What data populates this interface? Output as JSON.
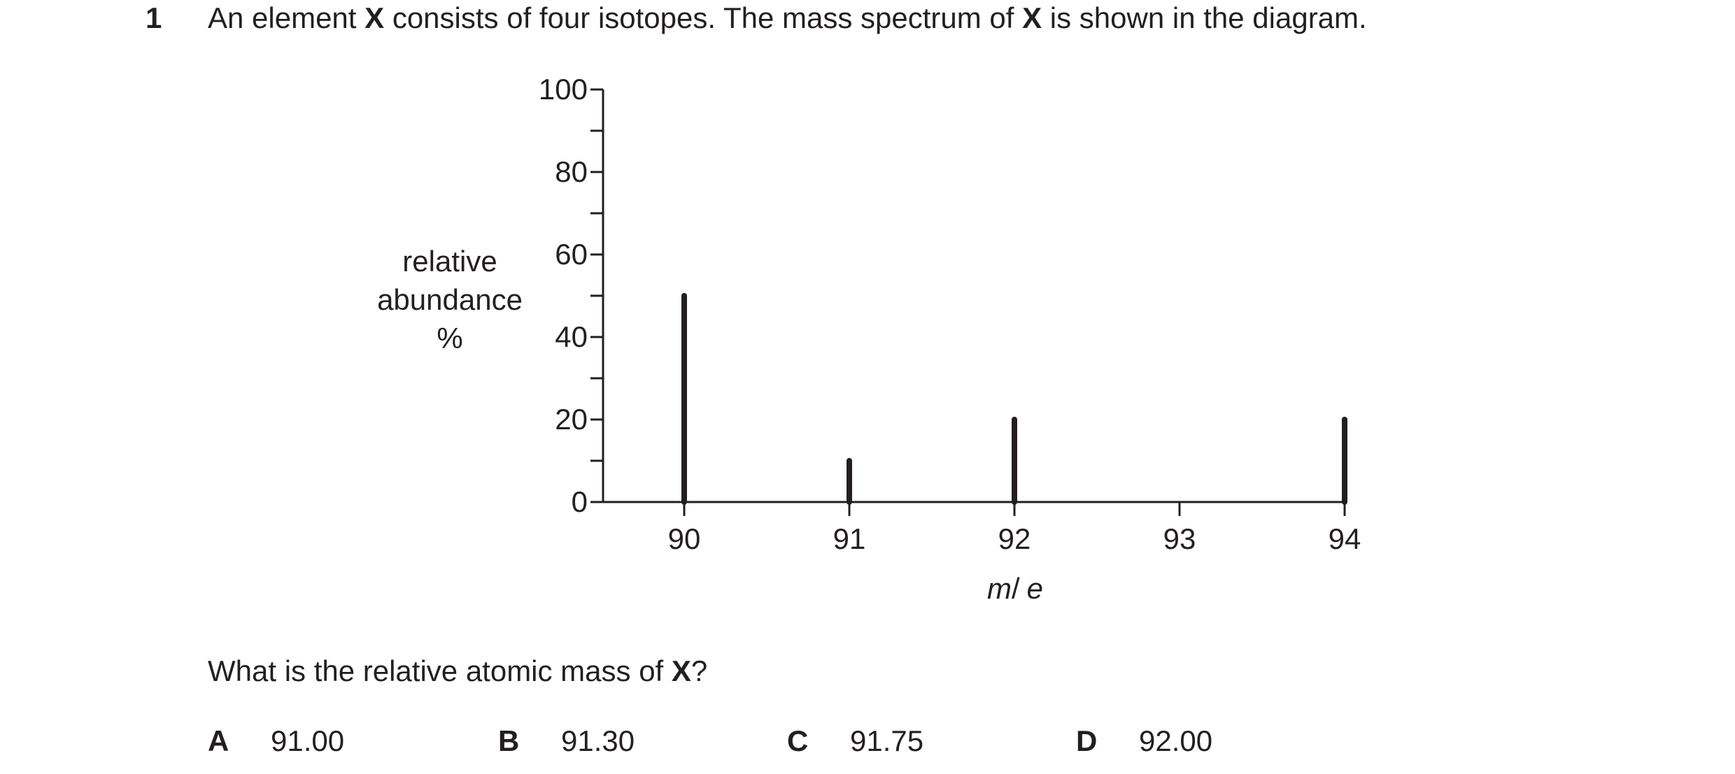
{
  "question": {
    "number": "1",
    "stem_parts": [
      "An element ",
      "X",
      " consists of four isotopes. The mass spectrum of ",
      "X",
      " is shown in the diagram."
    ],
    "prompt_parts": [
      "What is the relative atomic mass of ",
      "X",
      "?"
    ],
    "options": [
      {
        "letter": "A",
        "value": "91.00"
      },
      {
        "letter": "B",
        "value": "91.30"
      },
      {
        "letter": "C",
        "value": "91.75"
      },
      {
        "letter": "D",
        "value": "92.00"
      }
    ]
  },
  "chart_data": {
    "type": "bar",
    "x": [
      90,
      91,
      92,
      94
    ],
    "values": [
      50,
      10,
      20,
      20
    ],
    "xticks": [
      "90",
      "91",
      "92",
      "93",
      "94"
    ],
    "yticks": [
      "0",
      "20",
      "40",
      "60",
      "80",
      "100"
    ],
    "xlim": [
      89.5,
      94
    ],
    "ylim": [
      0,
      100
    ],
    "xlabel_parts": [
      "m",
      "/",
      "e"
    ],
    "ylabel_lines": [
      "relative",
      "abundance",
      "%"
    ],
    "grid": false,
    "color": "#231f20"
  }
}
